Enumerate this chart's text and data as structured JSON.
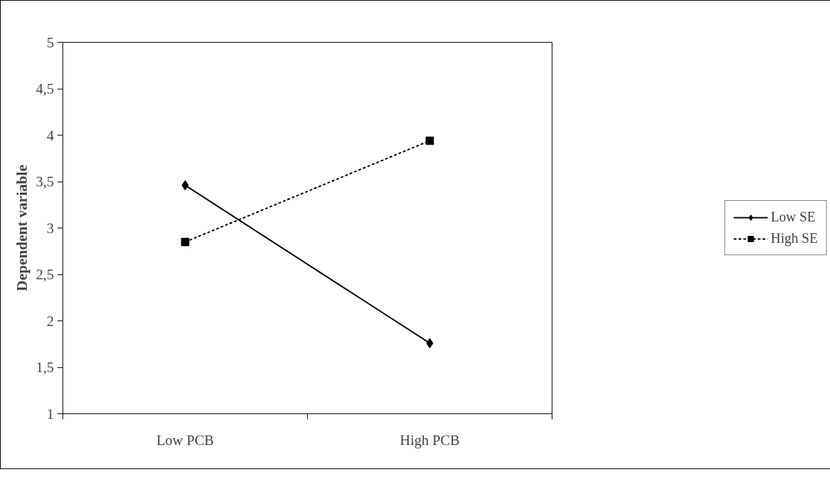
{
  "chart_data": {
    "type": "line",
    "ylabel": "Dependent variable",
    "categories": [
      "Low PCB",
      "High PCB"
    ],
    "series": [
      {
        "name": "Low SE",
        "color": "#000000",
        "values": [
          3.46,
          1.76
        ],
        "marker": "diamond",
        "line_style": "solid"
      },
      {
        "name": "High SE",
        "color": "#000000",
        "values": [
          2.85,
          3.94
        ],
        "marker": "square",
        "line_style": "dashed"
      }
    ],
    "ylim": [
      1,
      5
    ],
    "yticks": [
      1,
      {
        "value": 1.5,
        "label": "1,5"
      },
      2,
      {
        "value": 2.5,
        "label": "2,5"
      },
      3,
      {
        "value": 3.5,
        "label": "3,5"
      },
      4,
      {
        "value": 4.5,
        "label": "4,5"
      },
      5
    ],
    "grid": false,
    "legend": "right"
  }
}
